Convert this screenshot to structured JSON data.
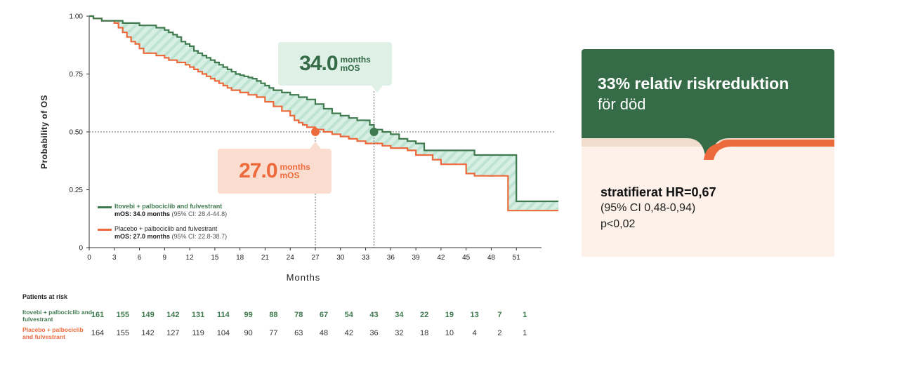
{
  "chart_data": {
    "type": "line",
    "subtype": "kaplan-meier",
    "ylabel": "Probability of OS",
    "xlabel": "Months",
    "xlim": [
      0,
      54
    ],
    "ylim": [
      0,
      1
    ],
    "x_ticks": [
      "0",
      "3",
      "6",
      "9",
      "12",
      "15",
      "18",
      "21",
      "24",
      "27",
      "30",
      "33",
      "36",
      "39",
      "42",
      "45",
      "48",
      "51"
    ],
    "y_ticks": [
      "0",
      "0.25",
      "0.50",
      "0.75",
      "1.00"
    ],
    "reference_line_y": 0.5,
    "series": [
      {
        "name": "Itovebi + palbociclib and fulvestrant",
        "color": "#3f7a4f",
        "median_label": "mOS:",
        "median_value": "34.0 months",
        "ci": "(95% CI: 28.4-44.8)",
        "median_x": 34.0,
        "x": [
          0,
          0.5,
          1.5,
          3,
          4,
          5,
          6,
          7,
          8,
          9,
          9.5,
          10,
          10.5,
          11,
          11.5,
          12,
          12.5,
          13,
          13.5,
          14,
          14.5,
          15,
          15.5,
          16,
          16.5,
          17,
          17.5,
          18,
          18.5,
          19,
          19.5,
          20,
          20.5,
          21,
          21.5,
          22,
          23,
          24,
          25,
          26,
          27,
          28,
          29,
          30,
          31,
          32,
          33,
          33.5,
          34,
          35,
          36,
          37,
          38,
          39,
          40,
          41,
          42,
          43,
          44,
          45,
          46,
          47,
          48,
          49,
          50,
          51,
          52,
          53
        ],
        "y": [
          1.0,
          0.99,
          0.98,
          0.98,
          0.97,
          0.97,
          0.96,
          0.96,
          0.95,
          0.94,
          0.93,
          0.92,
          0.91,
          0.89,
          0.88,
          0.87,
          0.85,
          0.84,
          0.83,
          0.82,
          0.81,
          0.8,
          0.79,
          0.78,
          0.77,
          0.76,
          0.75,
          0.745,
          0.74,
          0.735,
          0.73,
          0.72,
          0.71,
          0.7,
          0.69,
          0.68,
          0.67,
          0.66,
          0.65,
          0.64,
          0.62,
          0.6,
          0.58,
          0.57,
          0.56,
          0.55,
          0.55,
          0.53,
          0.51,
          0.5,
          0.49,
          0.47,
          0.46,
          0.45,
          0.42,
          0.42,
          0.42,
          0.42,
          0.42,
          0.42,
          0.4,
          0.4,
          0.4,
          0.4,
          0.4,
          0.2,
          0.2,
          0.2
        ]
      },
      {
        "name": "Placebo + palbociclib and fulvestrant",
        "color": "#ec6a3b",
        "median_label": "mOS:",
        "median_value": "27.0 months",
        "ci": "(95% CI: 22.8-38.7)",
        "median_x": 27.0,
        "x": [
          0,
          0.5,
          1.5,
          3,
          3.5,
          4,
          4.5,
          5,
          5.5,
          6,
          6.5,
          7,
          8,
          9,
          9.5,
          10,
          10.5,
          11,
          11.5,
          12,
          12.5,
          13,
          13.5,
          14,
          14.5,
          15,
          15.5,
          16,
          16.5,
          17,
          17.5,
          18,
          19,
          20,
          21,
          22,
          23,
          24,
          24.5,
          25,
          25.5,
          26,
          27,
          28,
          29,
          30,
          31,
          32,
          33,
          34,
          35,
          36,
          37,
          38,
          39,
          40,
          41,
          42,
          43,
          44,
          45,
          46,
          47,
          48,
          49,
          50,
          51,
          52,
          53
        ],
        "y": [
          1.0,
          0.99,
          0.98,
          0.97,
          0.95,
          0.93,
          0.91,
          0.89,
          0.88,
          0.86,
          0.84,
          0.84,
          0.83,
          0.82,
          0.81,
          0.81,
          0.8,
          0.8,
          0.79,
          0.78,
          0.77,
          0.76,
          0.75,
          0.74,
          0.73,
          0.72,
          0.71,
          0.7,
          0.69,
          0.68,
          0.68,
          0.67,
          0.66,
          0.65,
          0.63,
          0.61,
          0.59,
          0.57,
          0.55,
          0.54,
          0.53,
          0.52,
          0.51,
          0.5,
          0.49,
          0.48,
          0.47,
          0.46,
          0.45,
          0.45,
          0.44,
          0.43,
          0.43,
          0.42,
          0.4,
          0.4,
          0.38,
          0.36,
          0.36,
          0.36,
          0.32,
          0.31,
          0.31,
          0.31,
          0.31,
          0.16,
          0.16,
          0.16,
          0.16
        ]
      }
    ]
  },
  "callouts": {
    "treatment": {
      "value": "34.0",
      "unit_top": "months",
      "unit_bottom": "mOS"
    },
    "placebo": {
      "value": "27.0",
      "unit_top": "months",
      "unit_bottom": "mOS"
    }
  },
  "legend": {
    "treatment_name": "Itovebi + palbociclib and fulvestrant",
    "treatment_mos_label": "mOS: 34.0 months",
    "treatment_ci": "(95% CI: 28.4-44.8)",
    "placebo_name": "Placebo + palbociclib and fulvestrant",
    "placebo_mos_label": "mOS: 27.0 months",
    "placebo_ci": "(95% CI: 22.8-38.7)"
  },
  "risk_table": {
    "title": "Patients at risk",
    "treatment_label": "Itovebi + palbociclib and fulvestrant",
    "placebo_label": "Placebo + palbociclib and fulvestrant",
    "treatment_values": [
      "161",
      "155",
      "149",
      "142",
      "131",
      "114",
      "99",
      "88",
      "78",
      "67",
      "54",
      "43",
      "34",
      "22",
      "19",
      "13",
      "7",
      "1"
    ],
    "placebo_values": [
      "164",
      "155",
      "142",
      "127",
      "119",
      "104",
      "90",
      "77",
      "63",
      "48",
      "42",
      "36",
      "32",
      "18",
      "10",
      "4",
      "2",
      "1"
    ]
  },
  "panel": {
    "headline": "33% relativ riskreduktion",
    "subline": "för död",
    "hr": "stratifierat HR=0,67",
    "ci": "(95% CI 0,48-0,94)",
    "p": "p<0,02",
    "colors": {
      "top": "#356b47",
      "bottom": "#fdf1ea",
      "accent": "#ec6a3b",
      "divider": "#f2dccc"
    }
  }
}
